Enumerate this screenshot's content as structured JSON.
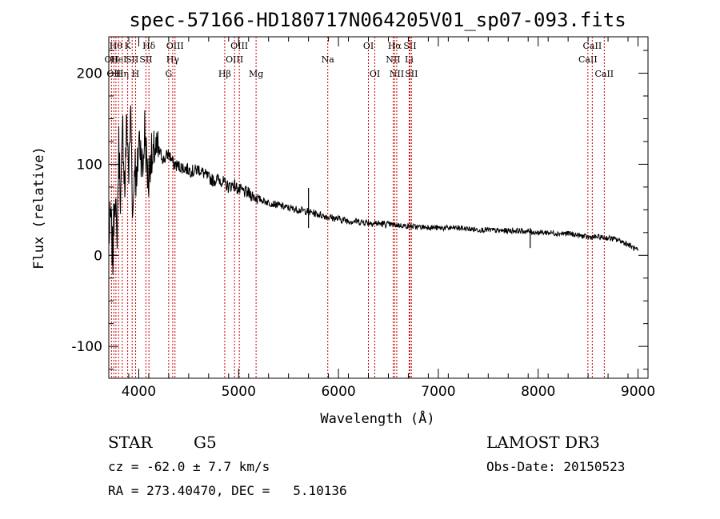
{
  "chart_data": {
    "type": "line",
    "title": "spec-57166-HD180717N064205V01_sp07-093.fits",
    "xlabel": "Wavelength (Å)",
    "ylabel": "Flux (relative)",
    "xlim": [
      3700,
      9100
    ],
    "ylim": [
      -135,
      240
    ],
    "x_ticks": [
      4000,
      5000,
      6000,
      7000,
      8000,
      9000
    ],
    "y_ticks": [
      -100,
      0,
      100,
      200
    ],
    "line_color": "#000000",
    "marker_color": "#cc0000",
    "series": [
      {
        "name": "flux",
        "x": [
          3700,
          3720,
          3740,
          3760,
          3780,
          3800,
          3820,
          3840,
          3860,
          3880,
          3900,
          3920,
          3940,
          3960,
          3980,
          4000,
          4020,
          4040,
          4060,
          4080,
          4100,
          4120,
          4140,
          4160,
          4180,
          4200,
          4250,
          4300,
          4350,
          4400,
          4450,
          4500,
          4550,
          4600,
          4650,
          4700,
          4750,
          4800,
          4850,
          4900,
          4950,
          5000,
          5100,
          5200,
          5300,
          5400,
          5500,
          5600,
          5700,
          5800,
          5900,
          6000,
          6100,
          6200,
          6300,
          6400,
          6500,
          6600,
          6700,
          6800,
          6900,
          7000,
          7100,
          7200,
          7300,
          7400,
          7500,
          7600,
          7700,
          7800,
          7900,
          8000,
          8100,
          8200,
          8300,
          8400,
          8500,
          8600,
          8700,
          8800,
          8900,
          9000
        ],
        "y": [
          20,
          40,
          -5,
          80,
          10,
          120,
          60,
          140,
          70,
          150,
          90,
          160,
          40,
          110,
          70,
          130,
          120,
          90,
          140,
          100,
          80,
          115,
          95,
          120,
          110,
          115,
          105,
          112,
          100,
          98,
          96,
          94,
          92,
          95,
          90,
          85,
          82,
          84,
          80,
          75,
          78,
          72,
          68,
          62,
          58,
          55,
          52,
          50,
          48,
          45,
          42,
          40,
          38,
          37,
          36,
          35,
          34,
          33,
          32,
          31,
          31,
          30,
          30,
          30,
          29,
          28,
          28,
          27,
          27,
          27,
          26,
          25,
          25,
          24,
          24,
          22,
          20,
          20,
          19,
          17,
          12,
          5
        ]
      }
    ],
    "spikes": [
      {
        "x": 5700,
        "y": 74
      },
      {
        "x": 7920,
        "y": 8
      }
    ],
    "lines": [
      {
        "x": 3727,
        "label": "OII",
        "row": 1
      },
      {
        "x": 3750,
        "label": "OII",
        "row": 2
      },
      {
        "x": 3771,
        "label": "Hθ",
        "row": 0
      },
      {
        "x": 3798,
        "label": "HeI",
        "row": 1
      },
      {
        "x": 3835,
        "label": "Hη",
        "row": 2
      },
      {
        "x": 3889,
        "label": "K",
        "row": 0
      },
      {
        "x": 3934,
        "label": "SII",
        "row": 1
      },
      {
        "x": 3968,
        "label": "H",
        "row": 2
      },
      {
        "x": 4072,
        "label": "SII",
        "row": 1
      },
      {
        "x": 4102,
        "label": "Hδ",
        "row": 0
      },
      {
        "x": 4300,
        "label": "G",
        "row": 2
      },
      {
        "x": 4340,
        "label": "Hγ",
        "row": 1
      },
      {
        "x": 4363,
        "label": "OIII",
        "row": 0
      },
      {
        "x": 4861,
        "label": "Hβ",
        "row": 2
      },
      {
        "x": 4959,
        "label": "OIII",
        "row": 1
      },
      {
        "x": 5007,
        "label": "OIII",
        "row": 0
      },
      {
        "x": 5175,
        "label": "Mg",
        "row": 2
      },
      {
        "x": 5893,
        "label": "Na",
        "row": 1
      },
      {
        "x": 6300,
        "label": "OI",
        "row": 0
      },
      {
        "x": 6364,
        "label": "OI",
        "row": 2
      },
      {
        "x": 6548,
        "label": "NII",
        "row": 1
      },
      {
        "x": 6563,
        "label": "Hα",
        "row": 0
      },
      {
        "x": 6584,
        "label": "NII",
        "row": 2
      },
      {
        "x": 6708,
        "label": "Li",
        "row": 1
      },
      {
        "x": 6716,
        "label": "SII",
        "row": 0
      },
      {
        "x": 6731,
        "label": "SII",
        "row": 2
      },
      {
        "x": 8498,
        "label": "CaII",
        "row": 1
      },
      {
        "x": 8542,
        "label": "CaII",
        "row": 0
      },
      {
        "x": 8662,
        "label": "CaII",
        "row": 2
      }
    ]
  },
  "footer": {
    "object_class": "STAR",
    "spectral_type": "G5",
    "survey": "LAMOST DR3",
    "redshift": "cz = -62.0 ± 7.7 km/s",
    "obs_date": "Obs-Date: 20150523",
    "coords": "RA = 273.40470, DEC =   5.10136"
  }
}
